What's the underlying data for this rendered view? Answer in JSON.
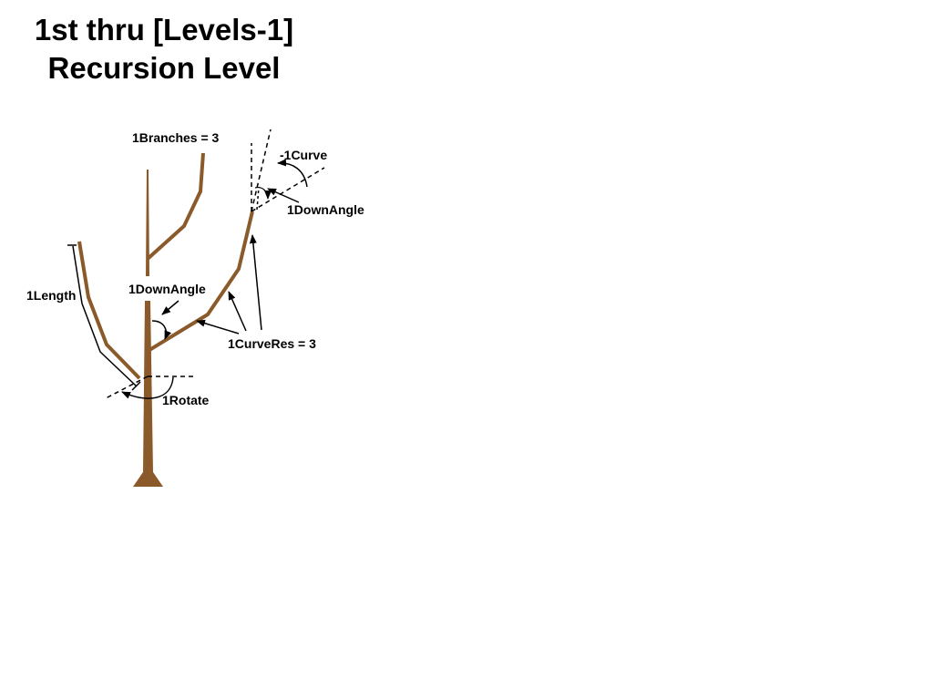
{
  "title": {
    "line1": "1st thru [Levels-1]",
    "line2": "Recursion Level"
  },
  "colors": {
    "branch": "#8B5A2B",
    "annotation": "#000000",
    "background": "#ffffff"
  },
  "labels": {
    "branches": "1Branches = 3",
    "curve": "-1Curve",
    "down_angle_top": "1DownAngle",
    "length": "1Length",
    "down_angle_mid": "1DownAngle",
    "curve_res": "1CurveRes = 3",
    "rotate": "1Rotate"
  }
}
